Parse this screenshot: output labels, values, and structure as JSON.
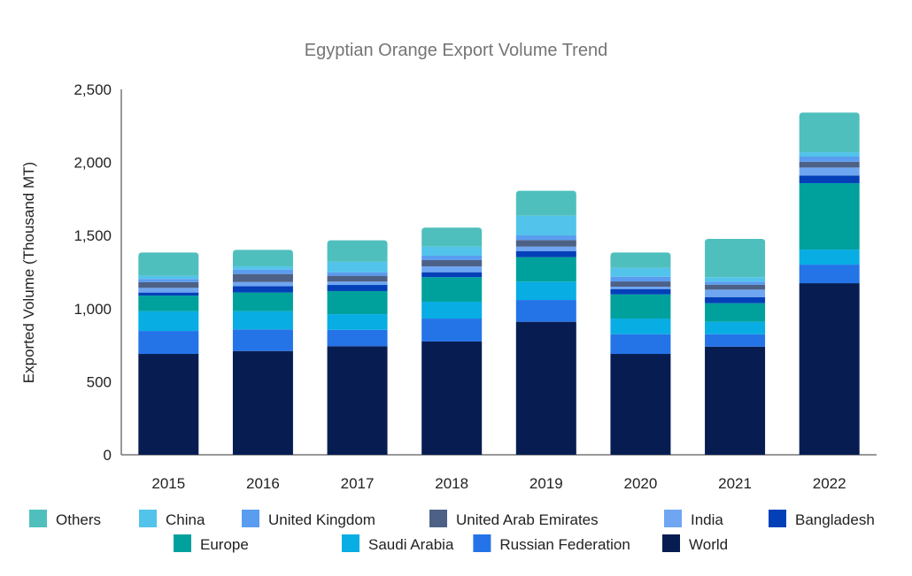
{
  "chart_data": {
    "type": "bar",
    "stacked": true,
    "title": "Egyptian Orange Export Volume Trend",
    "xlabel": "",
    "ylabel": "Exported Volume (Thousand MT)",
    "ylim": [
      0,
      2500
    ],
    "yticks": [
      0,
      500,
      1000,
      1500,
      2000,
      2500
    ],
    "ytick_labels": [
      "0",
      "500",
      "1,000",
      "1,500",
      "2,000",
      "2,500"
    ],
    "grid": false,
    "legend_position": "bottom",
    "categories": [
      "2015",
      "2016",
      "2017",
      "2018",
      "2019",
      "2020",
      "2021",
      "2022"
    ],
    "series": [
      {
        "name": "World",
        "color": "#071d52",
        "values": [
          690,
          710,
          743,
          775,
          910,
          690,
          740,
          1174
        ]
      },
      {
        "name": "Russian Federation",
        "color": "#2474e8",
        "values": [
          157,
          148,
          112,
          157,
          149,
          135,
          85,
          127
        ]
      },
      {
        "name": "Saudi Arabia",
        "color": "#07ade3",
        "values": [
          135,
          124,
          107,
          115,
          126,
          107,
          85,
          103
        ]
      },
      {
        "name": "Europe",
        "color": "#00a19d",
        "values": [
          107,
          128,
          158,
          168,
          167,
          165,
          127,
          454
        ]
      },
      {
        "name": "Bangladesh",
        "color": "#0340b8",
        "values": [
          21,
          44,
          42,
          34,
          42,
          37,
          42,
          53
        ]
      },
      {
        "name": "India",
        "color": "#6ea6f2",
        "values": [
          32,
          28,
          23,
          40,
          30,
          16,
          51,
          54
        ]
      },
      {
        "name": "United Arab Emirates",
        "color": "#4d6186",
        "values": [
          40,
          55,
          40,
          43,
          45,
          36,
          34,
          40
        ]
      },
      {
        "name": "United Kingdom",
        "color": "#5a9cf0",
        "values": [
          21,
          30,
          24,
          30,
          32,
          32,
          21,
          35
        ]
      },
      {
        "name": "China",
        "color": "#52c3ea",
        "values": [
          22,
          22,
          71,
          62,
          135,
          61,
          30,
          30
        ]
      },
      {
        "name": "Others",
        "color": "#4fbfbd",
        "values": [
          159,
          113,
          147,
          130,
          170,
          105,
          262,
          271
        ]
      }
    ],
    "legend_order": [
      "Others",
      "China",
      "United Kingdom",
      "United Arab Emirates",
      "India",
      "Bangladesh",
      "Europe",
      "Saudi Arabia",
      "Russian Federation",
      "World"
    ]
  }
}
